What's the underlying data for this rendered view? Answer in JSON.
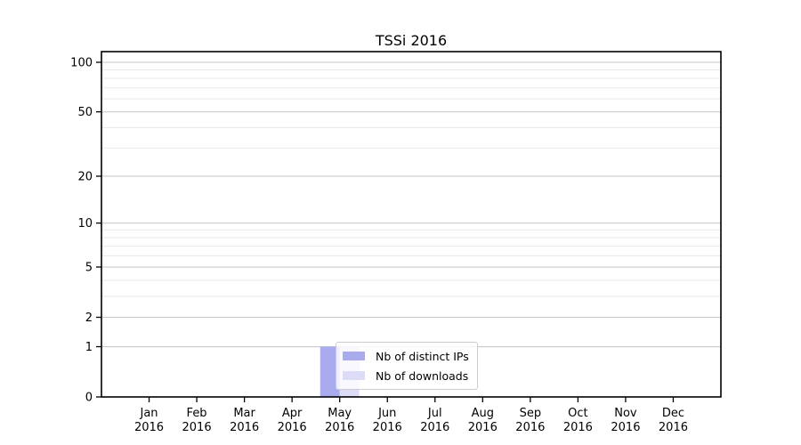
{
  "chart_data": {
    "type": "bar",
    "title": "TSSi 2016",
    "categories": [
      "Jan",
      "Feb",
      "Mar",
      "Apr",
      "May",
      "Jun",
      "Jul",
      "Aug",
      "Sep",
      "Oct",
      "Nov",
      "Dec"
    ],
    "x_year_label": "2016",
    "y_scale": "log1p",
    "y_ticks_major": [
      0,
      1,
      2,
      5,
      10,
      20,
      50,
      100
    ],
    "y_ticks_minor": [
      3,
      4,
      6,
      7,
      8,
      9,
      30,
      40,
      60,
      70,
      80,
      90
    ],
    "ylim": [
      0,
      116
    ],
    "grid": "horizontal",
    "legend": {
      "position": "lower-center"
    },
    "series": [
      {
        "name": "Nb of distinct IPs",
        "color": "#aaaaee",
        "values": [
          0,
          0,
          0,
          0,
          1,
          0,
          0,
          0,
          0,
          0,
          0,
          0
        ]
      },
      {
        "name": "Nb of downloads",
        "color": "#dcdcf7",
        "values": [
          0,
          0,
          0,
          0,
          1,
          0,
          0,
          0,
          0,
          0,
          0,
          0
        ]
      }
    ]
  }
}
